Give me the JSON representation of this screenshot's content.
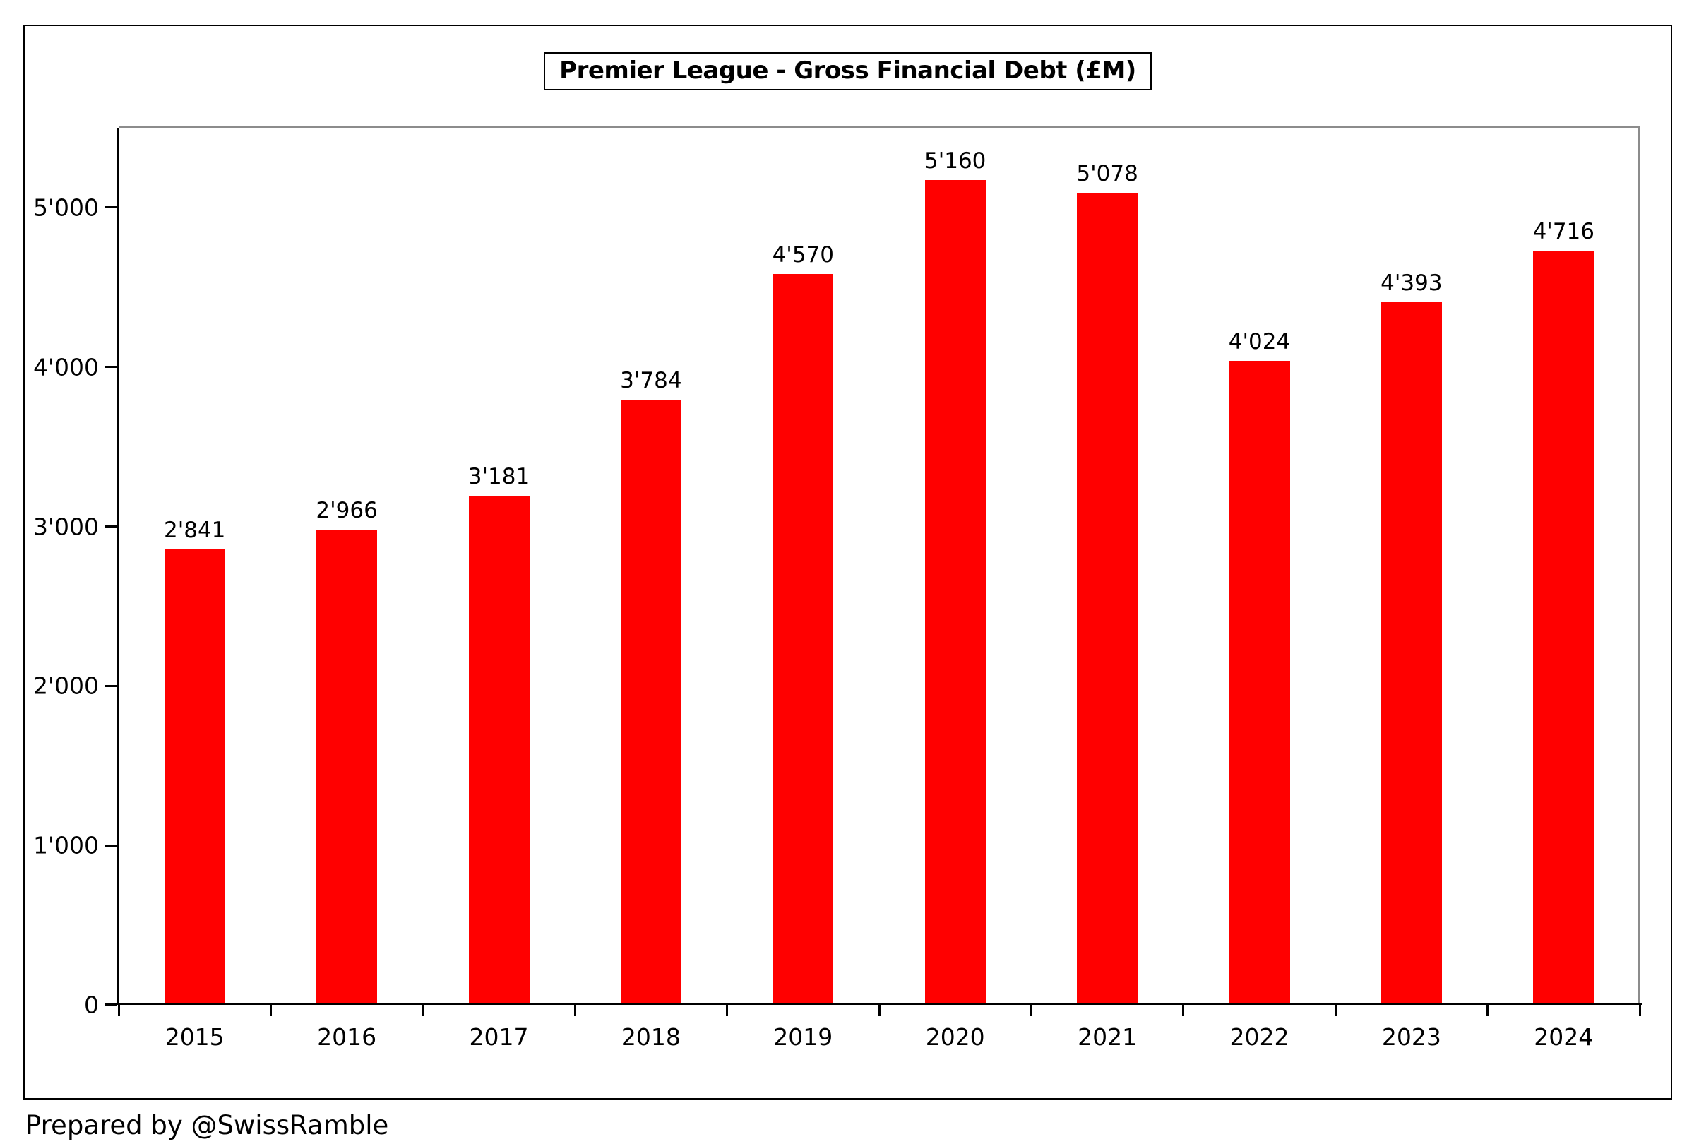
{
  "page": {
    "footer_credit": "Prepared by @SwissRamble"
  },
  "chart_data": {
    "type": "bar",
    "title": "Premier League - Gross Financial Debt (£M)",
    "categories": [
      "2015",
      "2016",
      "2017",
      "2018",
      "2019",
      "2020",
      "2021",
      "2022",
      "2023",
      "2024"
    ],
    "values": [
      2841,
      2966,
      3181,
      3784,
      4570,
      5160,
      5078,
      4024,
      4393,
      4716
    ],
    "value_labels": [
      "2'841",
      "2'966",
      "3'181",
      "3'784",
      "4'570",
      "5'160",
      "5'078",
      "4'024",
      "4'393",
      "4'716"
    ],
    "xlabel": "",
    "ylabel": "",
    "ylim": [
      0,
      5500
    ],
    "yticks": [
      {
        "value": 0,
        "label": "0"
      },
      {
        "value": 1000,
        "label": "1'000"
      },
      {
        "value": 2000,
        "label": "2'000"
      },
      {
        "value": 3000,
        "label": "3'000"
      },
      {
        "value": 4000,
        "label": "4'000"
      },
      {
        "value": 5000,
        "label": "5'000"
      }
    ],
    "grid": false,
    "legend": null,
    "bar_color": "#ff0000",
    "axis_color": "#000000",
    "plot_frame_color": "#8c8c8c"
  }
}
